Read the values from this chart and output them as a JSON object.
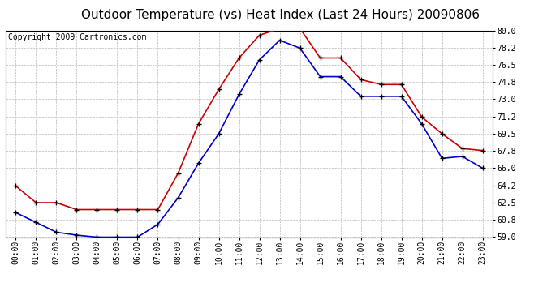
{
  "title": "Outdoor Temperature (vs) Heat Index (Last 24 Hours) 20090806",
  "copyright": "Copyright 2009 Cartronics.com",
  "hours": [
    "00:00",
    "01:00",
    "02:00",
    "03:00",
    "04:00",
    "05:00",
    "06:00",
    "07:00",
    "08:00",
    "09:00",
    "10:00",
    "11:00",
    "12:00",
    "13:00",
    "14:00",
    "15:00",
    "16:00",
    "17:00",
    "18:00",
    "19:00",
    "20:00",
    "21:00",
    "22:00",
    "23:00"
  ],
  "temp": [
    61.5,
    60.5,
    59.5,
    59.2,
    59.0,
    59.0,
    59.0,
    60.3,
    63.0,
    66.5,
    69.5,
    73.5,
    77.0,
    79.0,
    78.2,
    75.3,
    75.3,
    73.3,
    73.3,
    73.3,
    70.5,
    67.0,
    67.2,
    66.0
  ],
  "heat_index": [
    64.2,
    62.5,
    62.5,
    61.8,
    61.8,
    61.8,
    61.8,
    61.8,
    65.5,
    70.5,
    74.0,
    77.2,
    79.5,
    80.2,
    80.2,
    77.2,
    77.2,
    75.0,
    74.5,
    74.5,
    71.2,
    69.5,
    68.0,
    67.8
  ],
  "temp_color": "#0000cc",
  "heat_index_color": "#cc0000",
  "marker_color": "black",
  "background_color": "#ffffff",
  "plot_bg_color": "#ffffff",
  "grid_color": "#bbbbbb",
  "ylim": [
    59.0,
    80.0
  ],
  "yticks": [
    59.0,
    60.8,
    62.5,
    64.2,
    66.0,
    67.8,
    69.5,
    71.2,
    73.0,
    74.8,
    76.5,
    78.2,
    80.0
  ],
  "title_fontsize": 11,
  "copyright_fontsize": 7,
  "tick_fontsize": 7
}
